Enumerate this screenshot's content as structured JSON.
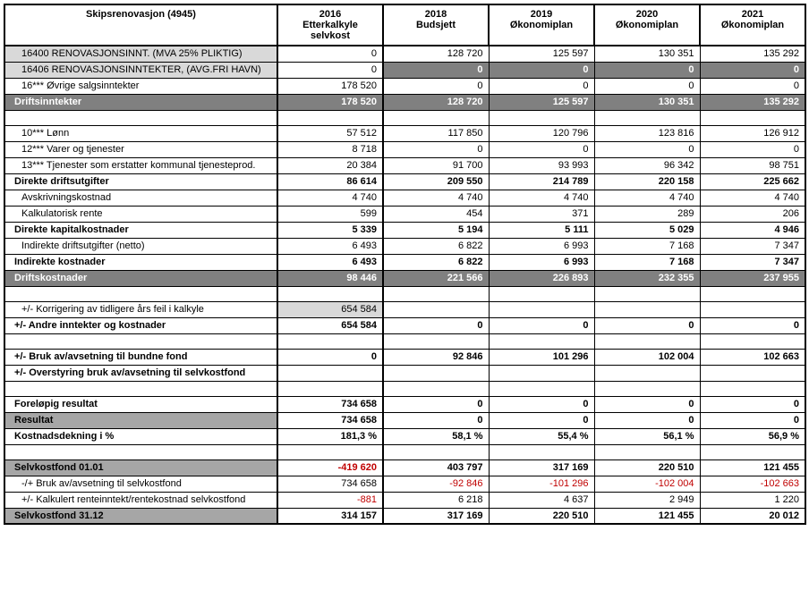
{
  "header": {
    "title": "Skipsrenovasjon (4945)",
    "cols": [
      {
        "year": "2016",
        "sub": "Etterkalkyle selvkost"
      },
      {
        "year": "2018",
        "sub": "Budsjett"
      },
      {
        "year": "2019",
        "sub": "Økonomiplan"
      },
      {
        "year": "2020",
        "sub": "Økonomiplan"
      },
      {
        "year": "2021",
        "sub": "Økonomiplan"
      }
    ]
  },
  "rows": [
    {
      "type": "data",
      "style": "lt",
      "indent": 1,
      "label": "16400 RENOVASJONSINNT. (MVA 25% PLIKTIG)",
      "v": [
        "0",
        "128 720",
        "125 597",
        "130 351",
        "135 292"
      ]
    },
    {
      "type": "data",
      "style": "lt",
      "indent": 1,
      "label": "16406 RENOVASJONSINNTEKTER, (AVG.FRI HAVN)",
      "v": [
        "0",
        "0",
        "0",
        "0",
        "0"
      ],
      "dk": [
        1,
        2,
        3,
        4
      ]
    },
    {
      "type": "data",
      "style": "",
      "indent": 1,
      "label": "16*** Øvrige salgsinntekter",
      "v": [
        "178 520",
        "0",
        "0",
        "0",
        "0"
      ]
    },
    {
      "type": "total",
      "style": "dk",
      "label": "Driftsinntekter",
      "v": [
        "178 520",
        "128 720",
        "125 597",
        "130 351",
        "135 292"
      ]
    },
    {
      "type": "spacer"
    },
    {
      "type": "data",
      "style": "",
      "indent": 1,
      "label": "10*** Lønn",
      "v": [
        "57 512",
        "117 850",
        "120 796",
        "123 816",
        "126 912"
      ]
    },
    {
      "type": "data",
      "style": "",
      "indent": 1,
      "label": "12*** Varer og tjenester",
      "v": [
        "8 718",
        "0",
        "0",
        "0",
        "0"
      ]
    },
    {
      "type": "data",
      "style": "",
      "indent": 1,
      "label": "13*** Tjenester som erstatter kommunal tjenesteprod.",
      "v": [
        "20 384",
        "91 700",
        "93 993",
        "96 342",
        "98 751"
      ]
    },
    {
      "type": "subtotal",
      "label": "Direkte driftsutgifter",
      "v": [
        "86 614",
        "209 550",
        "214 789",
        "220 158",
        "225 662"
      ]
    },
    {
      "type": "data",
      "style": "",
      "indent": 1,
      "label": "Avskrivningskostnad",
      "v": [
        "4 740",
        "4 740",
        "4 740",
        "4 740",
        "4 740"
      ]
    },
    {
      "type": "data",
      "style": "",
      "indent": 1,
      "label": "Kalkulatorisk rente",
      "v": [
        "599",
        "454",
        "371",
        "289",
        "206"
      ]
    },
    {
      "type": "subtotal",
      "label": "Direkte kapitalkostnader",
      "v": [
        "5 339",
        "5 194",
        "5 111",
        "5 029",
        "4 946"
      ]
    },
    {
      "type": "data",
      "style": "",
      "indent": 1,
      "label": "Indirekte driftsutgifter (netto)",
      "v": [
        "6 493",
        "6 822",
        "6 993",
        "7 168",
        "7 347"
      ]
    },
    {
      "type": "subtotal",
      "label": "Indirekte kostnader",
      "v": [
        "6 493",
        "6 822",
        "6 993",
        "7 168",
        "7 347"
      ]
    },
    {
      "type": "total",
      "style": "dk",
      "label": "Driftskostnader",
      "v": [
        "98 446",
        "221 566",
        "226 893",
        "232 355",
        "237 955"
      ]
    },
    {
      "type": "spacer"
    },
    {
      "type": "data",
      "style": "",
      "indent": 1,
      "label": "+/- Korrigering av tidligere års feil i kalkyle",
      "v": [
        "654 584",
        "",
        "",
        "",
        ""
      ],
      "lt": [
        0
      ]
    },
    {
      "type": "subtotal",
      "label": "+/- Andre inntekter og kostnader",
      "v": [
        "654 584",
        "0",
        "0",
        "0",
        "0"
      ]
    },
    {
      "type": "spacer"
    },
    {
      "type": "subtotal",
      "label": "+/- Bruk av/avsetning til bundne fond",
      "v": [
        "0",
        "92 846",
        "101 296",
        "102 004",
        "102 663"
      ]
    },
    {
      "type": "subtotal",
      "label": "+/- Overstyring bruk av/avsetning til selvkostfond",
      "v": [
        "",
        "",
        "",
        "",
        ""
      ]
    },
    {
      "type": "spacer"
    },
    {
      "type": "subtotal",
      "label": "Foreløpig resultat",
      "v": [
        "734 658",
        "0",
        "0",
        "0",
        "0"
      ]
    },
    {
      "type": "total",
      "style": "lt-bold",
      "label": "Resultat",
      "v": [
        "734 658",
        "0",
        "0",
        "0",
        "0"
      ]
    },
    {
      "type": "subtotal",
      "label": "Kostnadsdekning i %",
      "v": [
        "181,3 %",
        "58,1 %",
        "55,4 %",
        "56,1 %",
        "56,9 %"
      ]
    },
    {
      "type": "spacer"
    },
    {
      "type": "total",
      "style": "lt-bold",
      "label": "Selvkostfond 01.01",
      "v": [
        "-419 620",
        "403 797",
        "317 169",
        "220 510",
        "121 455"
      ],
      "neg": [
        0
      ]
    },
    {
      "type": "data",
      "style": "",
      "indent": 1,
      "label": "-/+ Bruk av/avsetning til selvkostfond",
      "v": [
        "734 658",
        "-92 846",
        "-101 296",
        "-102 004",
        "-102 663"
      ],
      "neg": [
        1,
        2,
        3,
        4
      ]
    },
    {
      "type": "data",
      "style": "",
      "indent": 1,
      "label": "+/- Kalkulert renteinntekt/rentekostnad selvkostfond",
      "v": [
        "-881",
        "6 218",
        "4 637",
        "2 949",
        "1 220"
      ],
      "neg": [
        0
      ]
    },
    {
      "type": "total",
      "style": "lt-bold",
      "label": "Selvkostfond 31.12",
      "v": [
        "314 157",
        "317 169",
        "220 510",
        "121 455",
        "20 012"
      ]
    }
  ],
  "colors": {
    "lt": "#d9d9d9",
    "dk": "#808080",
    "neg": "#c00000"
  }
}
